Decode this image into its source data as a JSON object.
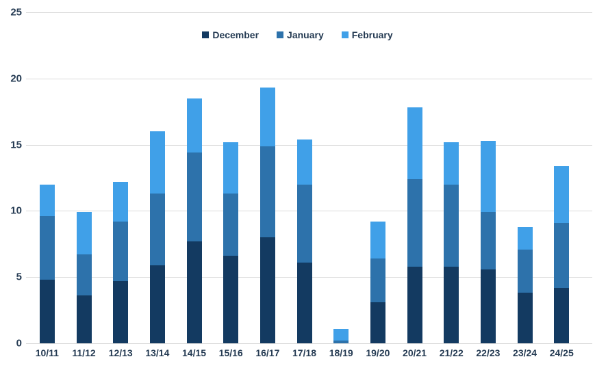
{
  "chart_data": {
    "type": "bar",
    "stacked": true,
    "title": "",
    "xlabel": "",
    "ylabel": "",
    "ylim": [
      0,
      25
    ],
    "yticks": [
      0,
      5,
      10,
      15,
      20,
      25
    ],
    "grid": true,
    "legend_position": "top-center",
    "categories": [
      "10/11",
      "11/12",
      "12/13",
      "13/14",
      "14/15",
      "15/16",
      "16/17",
      "17/18",
      "18/19",
      "19/20",
      "20/21",
      "21/22",
      "22/23",
      "23/24",
      "24/25"
    ],
    "series": [
      {
        "name": "December",
        "color": "#133a61",
        "values": [
          4.8,
          3.6,
          4.7,
          5.9,
          7.7,
          6.6,
          8.0,
          6.1,
          0.0,
          3.1,
          5.8,
          5.8,
          5.6,
          3.8,
          4.2
        ]
      },
      {
        "name": "January",
        "color": "#2d72ab",
        "values": [
          4.8,
          3.1,
          4.5,
          5.4,
          6.7,
          4.7,
          6.9,
          5.9,
          0.2,
          3.3,
          6.6,
          6.2,
          4.3,
          3.3,
          4.9
        ]
      },
      {
        "name": "February",
        "color": "#40a0e8",
        "values": [
          2.4,
          3.2,
          3.0,
          4.7,
          4.1,
          3.9,
          4.4,
          3.4,
          0.9,
          2.8,
          5.4,
          3.2,
          5.4,
          1.7,
          4.3
        ]
      }
    ]
  },
  "colors": {
    "background": "#ffffff",
    "gridline": "#d9d9d9",
    "text": "#253b53"
  }
}
